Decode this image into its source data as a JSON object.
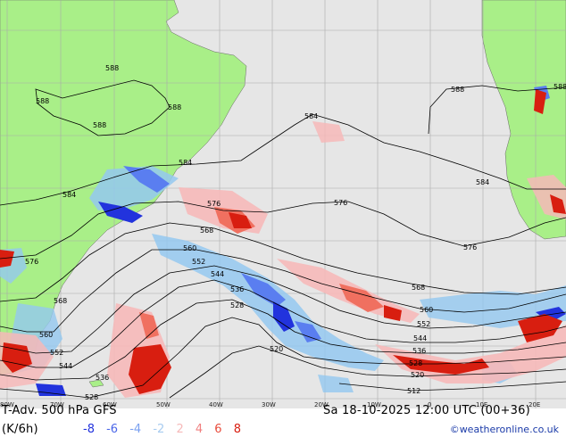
{
  "map": {
    "colors": {
      "ocean": "#e6e6e6",
      "land": "#a9ef88",
      "grid": "#aaaaaa",
      "contour": "#000000",
      "warm_light": "#f6b9b9",
      "warm_mid": "#f07060",
      "warm_dark": "#d81e10",
      "cold_light": "#94c8f0",
      "cold_mid": "#5a7ef0",
      "cold_dark": "#2233dd"
    },
    "lon_labels": [
      "80W",
      "70W",
      "60W",
      "50W",
      "40W",
      "30W",
      "20W",
      "10W",
      "0",
      "10E",
      "20E"
    ],
    "contour_labels": [
      "588",
      "588",
      "588",
      "588",
      "588",
      "588",
      "584",
      "584",
      "584",
      "584",
      "576",
      "576",
      "576",
      "576",
      "568",
      "568",
      "568",
      "560",
      "560",
      "560",
      "552",
      "552",
      "552",
      "544",
      "544",
      "544",
      "536",
      "536",
      "536",
      "528",
      "528",
      "528",
      "520",
      "520",
      "512"
    ]
  },
  "footer": {
    "title": "T-Adv. 500 hPa GFS",
    "units": "(K/6h)",
    "datetime": "Sa 18-10-2025 12:00 UTC (00+36)",
    "credit": "©weatheronline.co.uk"
  },
  "legend": {
    "values": [
      "-8",
      "-6",
      "-4",
      "-2",
      "2",
      "4",
      "6",
      "8"
    ],
    "colors": [
      "#2233dd",
      "#4a66e8",
      "#7aa0f0",
      "#a8ccf0",
      "#f6b9b9",
      "#f08080",
      "#e84c3c",
      "#d81e10"
    ]
  }
}
